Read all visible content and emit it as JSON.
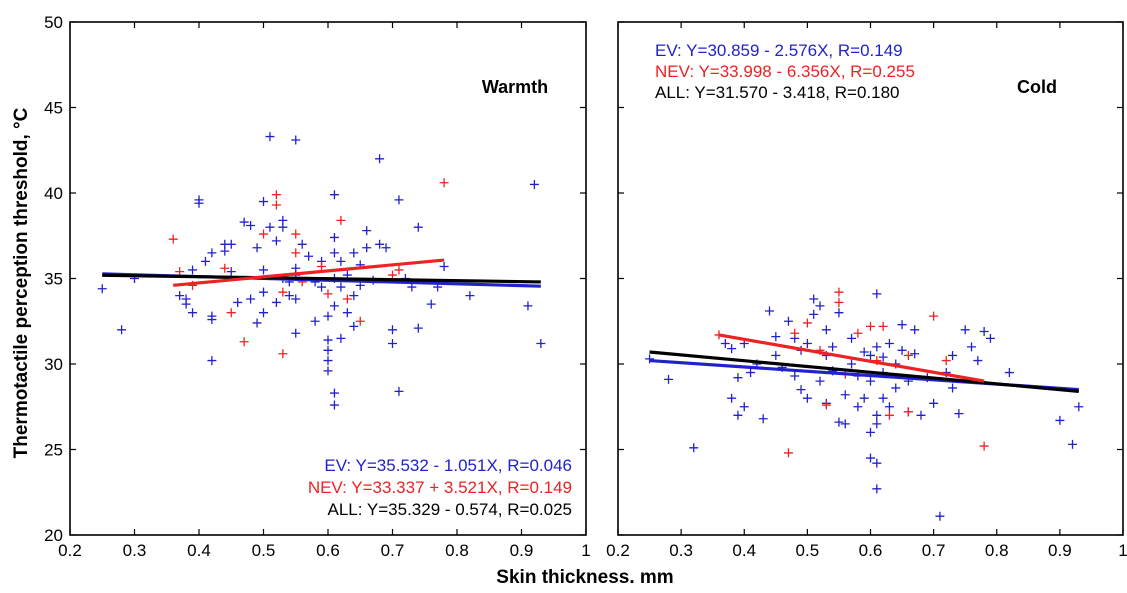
{
  "chart_data": {
    "type": "scatter",
    "ylabel": "Thermotactile perception threshold, °C",
    "xlabel": "Skin thickness. mm",
    "ylim": [
      20,
      50
    ],
    "grid": false,
    "colors": {
      "EV": "#2222cc",
      "NEV": "#ee2222",
      "ALL": "#000000"
    },
    "panels": [
      {
        "title": "Warmth",
        "xlim": [
          0.2,
          1.0
        ],
        "x_ticks": [
          "0.2",
          "0.3",
          "0.4",
          "0.5",
          "0.6",
          "0.7",
          "0.8",
          "0.9",
          "1"
        ],
        "y_ticks": [
          "20",
          "25",
          "30",
          "35",
          "40",
          "45",
          "50"
        ],
        "equations": [
          {
            "group": "EV",
            "text": "EV: Y=35.532 - 1.051X, R=0.046"
          },
          {
            "group": "NEV",
            "text": "NEV: Y=33.337 + 3.521X, R=0.149"
          },
          {
            "group": "ALL",
            "text": "ALL: Y=35.329 - 0.574, R=0.025"
          }
        ],
        "fits": [
          {
            "group": "EV",
            "x": [
              0.25,
              0.93
            ],
            "y": [
              35.27,
              34.55
            ]
          },
          {
            "group": "ALL",
            "x": [
              0.25,
              0.93
            ],
            "y": [
              35.19,
              34.8
            ]
          },
          {
            "group": "NEV",
            "x": [
              0.36,
              0.78
            ],
            "y": [
              34.6,
              36.08
            ]
          }
        ],
        "series": [
          {
            "name": "EV",
            "points": [
              [
                0.25,
                34.4
              ],
              [
                0.28,
                32.0
              ],
              [
                0.3,
                35.0
              ],
              [
                0.37,
                34.0
              ],
              [
                0.38,
                33.8
              ],
              [
                0.38,
                33.5
              ],
              [
                0.39,
                33.0
              ],
              [
                0.39,
                35.5
              ],
              [
                0.4,
                39.4
              ],
              [
                0.4,
                39.6
              ],
              [
                0.41,
                36.0
              ],
              [
                0.42,
                36.5
              ],
              [
                0.42,
                32.8
              ],
              [
                0.42,
                32.6
              ],
              [
                0.42,
                30.2
              ],
              [
                0.44,
                37.0
              ],
              [
                0.44,
                36.6
              ],
              [
                0.45,
                35.4
              ],
              [
                0.45,
                37.0
              ],
              [
                0.46,
                33.6
              ],
              [
                0.47,
                38.3
              ],
              [
                0.48,
                38.1
              ],
              [
                0.48,
                33.8
              ],
              [
                0.49,
                36.8
              ],
              [
                0.49,
                32.4
              ],
              [
                0.5,
                34.2
              ],
              [
                0.5,
                33.0
              ],
              [
                0.5,
                35.5
              ],
              [
                0.5,
                39.5
              ],
              [
                0.51,
                43.3
              ],
              [
                0.51,
                38.0
              ],
              [
                0.52,
                37.2
              ],
              [
                0.52,
                33.6
              ],
              [
                0.53,
                38.4
              ],
              [
                0.53,
                38.0
              ],
              [
                0.53,
                35.0
              ],
              [
                0.54,
                34.8
              ],
              [
                0.54,
                34.0
              ],
              [
                0.55,
                43.1
              ],
              [
                0.55,
                35.6
              ],
              [
                0.55,
                35.2
              ],
              [
                0.55,
                33.8
              ],
              [
                0.55,
                31.8
              ],
              [
                0.56,
                37.0
              ],
              [
                0.57,
                36.3
              ],
              [
                0.58,
                34.8
              ],
              [
                0.58,
                32.5
              ],
              [
                0.59,
                36.0
              ],
              [
                0.59,
                34.5
              ],
              [
                0.6,
                32.8
              ],
              [
                0.6,
                31.4
              ],
              [
                0.6,
                30.8
              ],
              [
                0.6,
                30.2
              ],
              [
                0.6,
                29.6
              ],
              [
                0.61,
                39.9
              ],
              [
                0.61,
                37.4
              ],
              [
                0.61,
                36.5
              ],
              [
                0.61,
                35.0
              ],
              [
                0.61,
                33.4
              ],
              [
                0.61,
                28.3
              ],
              [
                0.61,
                27.6
              ],
              [
                0.62,
                36.0
              ],
              [
                0.62,
                34.5
              ],
              [
                0.62,
                31.5
              ],
              [
                0.63,
                35.2
              ],
              [
                0.63,
                33.0
              ],
              [
                0.64,
                36.5
              ],
              [
                0.64,
                34.0
              ],
              [
                0.64,
                32.2
              ],
              [
                0.65,
                35.8
              ],
              [
                0.65,
                34.6
              ],
              [
                0.66,
                37.8
              ],
              [
                0.66,
                36.8
              ],
              [
                0.67,
                34.9
              ],
              [
                0.68,
                37.0
              ],
              [
                0.68,
                42.0
              ],
              [
                0.69,
                36.8
              ],
              [
                0.7,
                32.0
              ],
              [
                0.7,
                31.2
              ],
              [
                0.71,
                39.6
              ],
              [
                0.71,
                28.4
              ],
              [
                0.72,
                35.0
              ],
              [
                0.73,
                34.5
              ],
              [
                0.74,
                38.0
              ],
              [
                0.74,
                32.1
              ],
              [
                0.76,
                33.5
              ],
              [
                0.77,
                34.5
              ],
              [
                0.78,
                35.7
              ],
              [
                0.82,
                34.0
              ],
              [
                0.91,
                33.4
              ],
              [
                0.92,
                40.5
              ],
              [
                0.93,
                31.2
              ]
            ]
          },
          {
            "name": "NEV",
            "points": [
              [
                0.36,
                37.3
              ],
              [
                0.37,
                35.4
              ],
              [
                0.39,
                34.6
              ],
              [
                0.44,
                35.6
              ],
              [
                0.45,
                33.0
              ],
              [
                0.47,
                31.3
              ],
              [
                0.5,
                37.6
              ],
              [
                0.52,
                39.9
              ],
              [
                0.52,
                39.3
              ],
              [
                0.53,
                30.6
              ],
              [
                0.53,
                34.2
              ],
              [
                0.55,
                37.6
              ],
              [
                0.55,
                36.5
              ],
              [
                0.56,
                34.8
              ],
              [
                0.59,
                35.7
              ],
              [
                0.6,
                34.1
              ],
              [
                0.62,
                38.4
              ],
              [
                0.63,
                33.8
              ],
              [
                0.65,
                32.5
              ],
              [
                0.7,
                35.2
              ],
              [
                0.71,
                35.5
              ],
              [
                0.78,
                40.6
              ]
            ]
          }
        ]
      },
      {
        "title": "Cold",
        "xlim": [
          0.2,
          1.0
        ],
        "x_ticks": [
          "0.2",
          "0.3",
          "0.4",
          "0.5",
          "0.6",
          "0.7",
          "0.8",
          "0.9",
          "1"
        ],
        "equations": [
          {
            "group": "EV",
            "text": "EV: Y=30.859 - 2.576X, R=0.149"
          },
          {
            "group": "NEV",
            "text": "NEV: Y=33.998 - 6.356X, R=0.255"
          },
          {
            "group": "ALL",
            "text": "ALL: Y=31.570 - 3.418, R=0.180"
          }
        ],
        "fits": [
          {
            "group": "EV",
            "x": [
              0.25,
              0.93
            ],
            "y": [
              30.2,
              28.5
            ]
          },
          {
            "group": "ALL",
            "x": [
              0.25,
              0.93
            ],
            "y": [
              30.7,
              28.4
            ]
          },
          {
            "group": "NEV",
            "x": [
              0.36,
              0.78
            ],
            "y": [
              31.7,
              29.0
            ]
          }
        ],
        "series": [
          {
            "name": "EV",
            "points": [
              [
                0.25,
                30.3
              ],
              [
                0.28,
                29.1
              ],
              [
                0.32,
                25.1
              ],
              [
                0.37,
                31.2
              ],
              [
                0.38,
                30.9
              ],
              [
                0.38,
                28.0
              ],
              [
                0.39,
                29.2
              ],
              [
                0.39,
                27.0
              ],
              [
                0.4,
                27.5
              ],
              [
                0.4,
                31.2
              ],
              [
                0.41,
                29.5
              ],
              [
                0.42,
                30.0
              ],
              [
                0.43,
                26.8
              ],
              [
                0.44,
                33.1
              ],
              [
                0.45,
                30.5
              ],
              [
                0.45,
                31.6
              ],
              [
                0.46,
                29.8
              ],
              [
                0.47,
                32.5
              ],
              [
                0.48,
                31.5
              ],
              [
                0.48,
                29.3
              ],
              [
                0.49,
                30.8
              ],
              [
                0.49,
                28.5
              ],
              [
                0.5,
                31.2
              ],
              [
                0.5,
                28.0
              ],
              [
                0.51,
                33.8
              ],
              [
                0.51,
                32.9
              ],
              [
                0.52,
                33.4
              ],
              [
                0.52,
                29.0
              ],
              [
                0.53,
                27.7
              ],
              [
                0.53,
                32.0
              ],
              [
                0.53,
                30.5
              ],
              [
                0.54,
                31.0
              ],
              [
                0.54,
                29.6
              ],
              [
                0.55,
                33.0
              ],
              [
                0.55,
                26.6
              ],
              [
                0.56,
                26.5
              ],
              [
                0.56,
                28.2
              ],
              [
                0.57,
                30.0
              ],
              [
                0.57,
                31.5
              ],
              [
                0.58,
                29.3
              ],
              [
                0.58,
                27.5
              ],
              [
                0.59,
                30.7
              ],
              [
                0.59,
                28.0
              ],
              [
                0.6,
                30.5
              ],
              [
                0.6,
                29.0
              ],
              [
                0.6,
                26.0
              ],
              [
                0.6,
                24.5
              ],
              [
                0.61,
                34.1
              ],
              [
                0.61,
                31.0
              ],
              [
                0.61,
                27.0
              ],
              [
                0.61,
                26.5
              ],
              [
                0.61,
                24.2
              ],
              [
                0.61,
                22.7
              ],
              [
                0.62,
                30.4
              ],
              [
                0.62,
                29.5
              ],
              [
                0.62,
                28.0
              ],
              [
                0.63,
                31.2
              ],
              [
                0.63,
                27.5
              ],
              [
                0.64,
                30.0
              ],
              [
                0.64,
                28.6
              ],
              [
                0.65,
                32.3
              ],
              [
                0.65,
                30.8
              ],
              [
                0.66,
                29.0
              ],
              [
                0.66,
                27.2
              ],
              [
                0.67,
                32.0
              ],
              [
                0.67,
                30.6
              ],
              [
                0.68,
                27.0
              ],
              [
                0.69,
                29.2
              ],
              [
                0.7,
                27.7
              ],
              [
                0.71,
                21.1
              ],
              [
                0.72,
                29.5
              ],
              [
                0.73,
                30.5
              ],
              [
                0.73,
                28.6
              ],
              [
                0.74,
                27.1
              ],
              [
                0.75,
                32.0
              ],
              [
                0.76,
                31.0
              ],
              [
                0.77,
                30.2
              ],
              [
                0.78,
                31.9
              ],
              [
                0.79,
                31.5
              ],
              [
                0.82,
                29.5
              ],
              [
                0.9,
                26.7
              ],
              [
                0.92,
                25.3
              ],
              [
                0.93,
                27.5
              ]
            ]
          },
          {
            "name": "NEV",
            "points": [
              [
                0.36,
                31.7
              ],
              [
                0.47,
                24.8
              ],
              [
                0.48,
                31.8
              ],
              [
                0.5,
                32.4
              ],
              [
                0.52,
                30.8
              ],
              [
                0.53,
                27.6
              ],
              [
                0.55,
                34.2
              ],
              [
                0.55,
                33.6
              ],
              [
                0.56,
                29.4
              ],
              [
                0.58,
                31.8
              ],
              [
                0.6,
                32.2
              ],
              [
                0.61,
                30.2
              ],
              [
                0.62,
                32.2
              ],
              [
                0.63,
                27.0
              ],
              [
                0.66,
                27.2
              ],
              [
                0.66,
                30.5
              ],
              [
                0.7,
                32.8
              ],
              [
                0.72,
                30.2
              ],
              [
                0.78,
                25.2
              ]
            ]
          }
        ]
      }
    ]
  }
}
